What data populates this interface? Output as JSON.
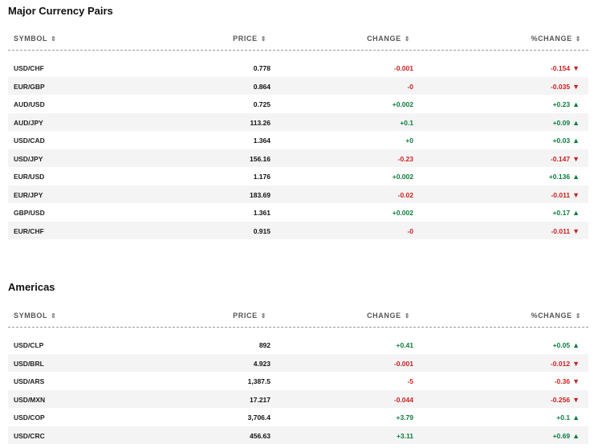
{
  "sections": [
    {
      "title": "Major Currency Pairs",
      "headers": {
        "symbol": "SYMBOL",
        "price": "PRICE",
        "change": "CHANGE",
        "pct_change": "%CHANGE"
      },
      "rows": [
        {
          "symbol": "USD/CHF",
          "price": "0.778",
          "change": "-0.001",
          "pct": "-0.154",
          "dir": "down"
        },
        {
          "symbol": "EUR/GBP",
          "price": "0.864",
          "change": "-0",
          "pct": "-0.035",
          "dir": "down"
        },
        {
          "symbol": "AUD/USD",
          "price": "0.725",
          "change": "+0.002",
          "pct": "+0.23",
          "dir": "up"
        },
        {
          "symbol": "AUD/JPY",
          "price": "113.26",
          "change": "+0.1",
          "pct": "+0.09",
          "dir": "up"
        },
        {
          "symbol": "USD/CAD",
          "price": "1.364",
          "change": "+0",
          "pct": "+0.03",
          "dir": "up"
        },
        {
          "symbol": "USD/JPY",
          "price": "156.16",
          "change": "-0.23",
          "pct": "-0.147",
          "dir": "down"
        },
        {
          "symbol": "EUR/USD",
          "price": "1.176",
          "change": "+0.002",
          "pct": "+0.136",
          "dir": "up"
        },
        {
          "symbol": "EUR/JPY",
          "price": "183.69",
          "change": "-0.02",
          "pct": "-0.011",
          "dir": "down"
        },
        {
          "symbol": "GBP/USD",
          "price": "1.361",
          "change": "+0.002",
          "pct": "+0.17",
          "dir": "up"
        },
        {
          "symbol": "EUR/CHF",
          "price": "0.915",
          "change": "-0",
          "pct": "-0.011",
          "dir": "down"
        }
      ]
    },
    {
      "title": "Americas",
      "headers": {
        "symbol": "SYMBOL",
        "price": "PRICE",
        "change": "CHANGE",
        "pct_change": "%CHANGE"
      },
      "rows": [
        {
          "symbol": "USD/CLP",
          "price": "892",
          "change": "+0.41",
          "pct": "+0.05",
          "dir": "up"
        },
        {
          "symbol": "USD/BRL",
          "price": "4.923",
          "change": "-0.001",
          "pct": "-0.012",
          "dir": "down"
        },
        {
          "symbol": "USD/ARS",
          "price": "1,387.5",
          "change": "-5",
          "pct": "-0.36",
          "dir": "down"
        },
        {
          "symbol": "USD/MXN",
          "price": "17.217",
          "change": "-0.044",
          "pct": "-0.256",
          "dir": "down"
        },
        {
          "symbol": "USD/COP",
          "price": "3,706.4",
          "change": "+3.79",
          "pct": "+0.1",
          "dir": "up"
        },
        {
          "symbol": "USD/CRC",
          "price": "456.63",
          "change": "+3.11",
          "pct": "+0.69",
          "dir": "up"
        }
      ]
    }
  ],
  "icons": {
    "sort": "sort-icon",
    "up": "triangle-up-icon",
    "down": "triangle-down-icon"
  },
  "colors": {
    "up": "#0a7d3b",
    "down": "#cc1f1f"
  }
}
